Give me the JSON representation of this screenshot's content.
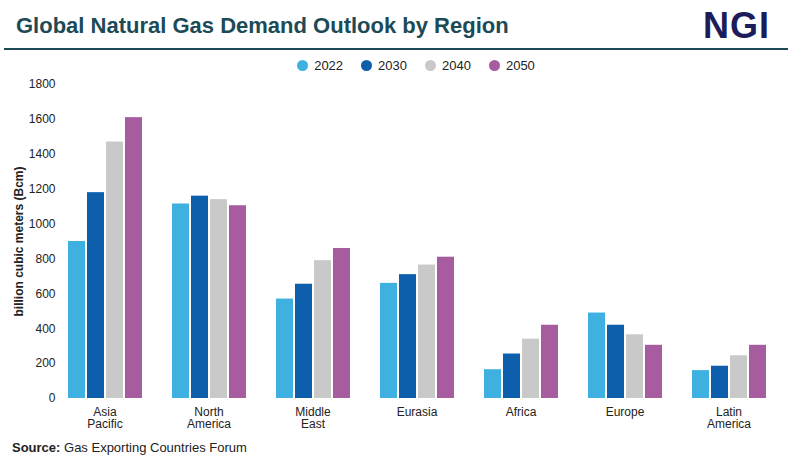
{
  "chart_data": {
    "type": "bar",
    "title": "Global Natural Gas Demand Outlook by Region",
    "logo": "NGI",
    "source": "Source: Gas Exporting Countries Forum",
    "y_label": "billion cubic meters (Bcm)",
    "categories": [
      "Asia Pacific",
      "North America",
      "Middle East",
      "Eurasia",
      "Africa",
      "Europe",
      "Latin America"
    ],
    "series": [
      {
        "name": "2022",
        "color": "#3eb1e0",
        "values": [
          900,
          1115,
          570,
          660,
          165,
          490,
          160
        ]
      },
      {
        "name": "2030",
        "color": "#0d5fab",
        "values": [
          1180,
          1160,
          655,
          710,
          255,
          420,
          185
        ]
      },
      {
        "name": "2040",
        "color": "#c9c9c9",
        "values": [
          1470,
          1140,
          790,
          765,
          340,
          365,
          245
        ]
      },
      {
        "name": "2050",
        "color": "#a65c9f",
        "values": [
          1610,
          1105,
          860,
          810,
          420,
          305,
          305
        ]
      }
    ],
    "ylim": [
      0,
      1800
    ],
    "yticks": [
      0,
      200,
      400,
      600,
      800,
      1000,
      1200,
      1400,
      1600,
      1800
    ],
    "grid": false,
    "legend": "top"
  }
}
